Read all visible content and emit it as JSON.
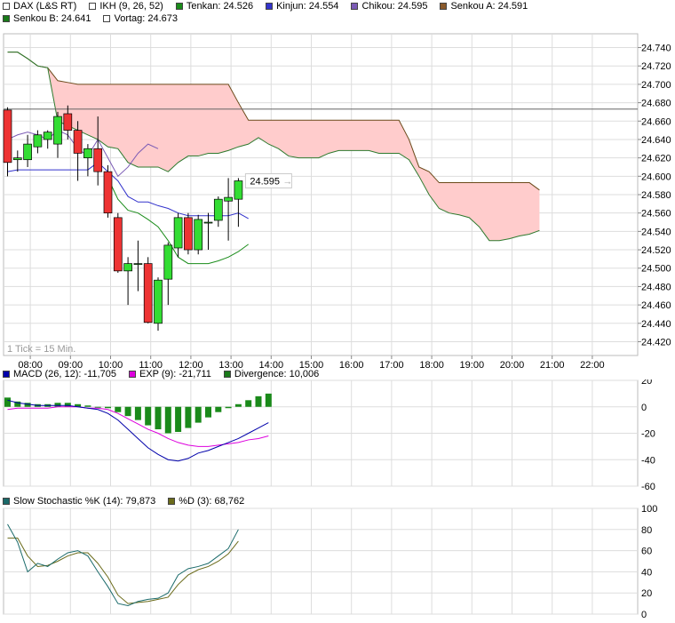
{
  "legend_row1": [
    {
      "label": "DAX (L&S RT)",
      "color": "#ffffff"
    },
    {
      "label": "IKH (9, 26, 52)",
      "color": "#ffffff"
    },
    {
      "label": "Tenkan: 24.526",
      "color": "#1a8c1a"
    },
    {
      "label": "Kinjun: 24.554",
      "color": "#3333cc"
    },
    {
      "label": "Chikou: 24.595",
      "color": "#7b5bb5"
    },
    {
      "label": "Senkou A: 24.591",
      "color": "#8a5a2b"
    }
  ],
  "legend_row2": [
    {
      "label": "Senkou B: 24.641",
      "color": "#1a7a1a"
    },
    {
      "label": "Vortag: 24.673",
      "color": "#ffffff"
    }
  ],
  "tick_note": "1 Tick = 15 Min.",
  "last_price_label": "24.595",
  "macd_legend": [
    {
      "label": "MACD (26, 12): -11,705",
      "color": "#0000aa"
    },
    {
      "label": "EXP (9): -21,711",
      "color": "#dd00dd"
    },
    {
      "label": "Divergence: 10,006",
      "color": "#1a7a1a"
    }
  ],
  "stoch_legend": [
    {
      "label": "Slow Stochastic %K (14): 79,873",
      "color": "#1a6a6a"
    },
    {
      "label": "%D (3): 68,762",
      "color": "#6b6b1a"
    }
  ],
  "colors": {
    "up": "#33dd33",
    "down": "#ee3333",
    "cloud": "#ffcccc",
    "grid": "#dddddd"
  },
  "chart_data": [
    {
      "type": "candlestick",
      "title": "DAX (L&S RT)",
      "x_ticks": [
        "08:00",
        "09:00",
        "10:00",
        "11:00",
        "12:00",
        "13:00",
        "14:00",
        "15:00",
        "16:00",
        "17:00",
        "18:00",
        "19:00",
        "20:00",
        "21:00",
        "22:00"
      ],
      "y_ticks": [
        "24.420",
        "24.440",
        "24.460",
        "24.480",
        "24.500",
        "24.520",
        "24.540",
        "24.560",
        "24.580",
        "24.600",
        "24.620",
        "24.640",
        "24.660",
        "24.680",
        "24.700",
        "24.720",
        "24.740"
      ],
      "ylim": [
        24.405,
        24.755
      ],
      "prev_close": 24.673,
      "candles": [
        {
          "t": "07:30",
          "o": 24.672,
          "h": 24.675,
          "l": 24.6,
          "c": 24.615
        },
        {
          "t": "07:45",
          "o": 24.618,
          "h": 24.628,
          "l": 24.605,
          "c": 24.62
        },
        {
          "t": "08:00",
          "o": 24.618,
          "h": 24.645,
          "l": 24.61,
          "c": 24.635
        },
        {
          "t": "08:15",
          "o": 24.632,
          "h": 24.65,
          "l": 24.625,
          "c": 24.645
        },
        {
          "t": "08:30",
          "o": 24.64,
          "h": 24.65,
          "l": 24.63,
          "c": 24.648
        },
        {
          "t": "08:45",
          "o": 24.635,
          "h": 24.67,
          "l": 24.62,
          "c": 24.665
        },
        {
          "t": "09:00",
          "o": 24.668,
          "h": 24.677,
          "l": 24.64,
          "c": 24.65
        },
        {
          "t": "09:15",
          "o": 24.65,
          "h": 24.66,
          "l": 24.595,
          "c": 24.625
        },
        {
          "t": "09:30",
          "o": 24.62,
          "h": 24.635,
          "l": 24.6,
          "c": 24.63
        },
        {
          "t": "09:45",
          "o": 24.63,
          "h": 24.665,
          "l": 24.59,
          "c": 24.605
        },
        {
          "t": "10:00",
          "o": 24.605,
          "h": 24.612,
          "l": 24.555,
          "c": 24.56
        },
        {
          "t": "10:15",
          "o": 24.555,
          "h": 24.56,
          "l": 24.495,
          "c": 24.497
        },
        {
          "t": "10:30",
          "o": 24.497,
          "h": 24.512,
          "l": 24.46,
          "c": 24.505
        },
        {
          "t": "10:45",
          "o": 24.505,
          "h": 24.53,
          "l": 24.475,
          "c": 24.505
        },
        {
          "t": "11:00",
          "o": 24.505,
          "h": 24.512,
          "l": 24.44,
          "c": 24.441
        },
        {
          "t": "11:15",
          "o": 24.44,
          "h": 24.49,
          "l": 24.432,
          "c": 24.487
        },
        {
          "t": "11:30",
          "o": 24.488,
          "h": 24.528,
          "l": 24.46,
          "c": 24.525
        },
        {
          "t": "11:45",
          "o": 24.522,
          "h": 24.56,
          "l": 24.512,
          "c": 24.555
        },
        {
          "t": "12:00",
          "o": 24.555,
          "h": 24.56,
          "l": 24.515,
          "c": 24.52
        },
        {
          "t": "12:15",
          "o": 24.52,
          "h": 24.558,
          "l": 24.515,
          "c": 24.553
        },
        {
          "t": "12:30",
          "o": 24.55,
          "h": 24.56,
          "l": 24.52,
          "c": 24.55
        },
        {
          "t": "12:45",
          "o": 24.552,
          "h": 24.578,
          "l": 24.545,
          "c": 24.575
        },
        {
          "t": "13:00",
          "o": 24.573,
          "h": 24.598,
          "l": 24.53,
          "c": 24.577
        },
        {
          "t": "13:15",
          "o": 24.575,
          "h": 24.598,
          "l": 24.545,
          "c": 24.595
        }
      ],
      "senkou_a": [
        [
          0,
          24.735
        ],
        [
          1,
          24.735
        ],
        [
          2,
          24.728
        ],
        [
          3,
          24.72
        ],
        [
          4,
          24.718
        ],
        [
          5,
          24.704
        ],
        [
          6,
          24.702
        ],
        [
          7,
          24.7
        ],
        [
          8,
          24.7
        ],
        [
          9,
          24.7
        ],
        [
          10,
          24.7
        ],
        [
          11,
          24.7
        ],
        [
          12,
          24.7
        ],
        [
          13,
          24.7
        ],
        [
          14,
          24.7
        ],
        [
          15,
          24.7
        ],
        [
          16,
          24.7
        ],
        [
          17,
          24.7
        ],
        [
          18,
          24.7
        ],
        [
          19,
          24.7
        ],
        [
          20,
          24.7
        ],
        [
          21,
          24.7
        ],
        [
          22,
          24.7
        ],
        [
          23,
          24.68
        ],
        [
          24,
          24.661
        ],
        [
          25,
          24.661
        ],
        [
          26,
          24.661
        ],
        [
          27,
          24.661
        ],
        [
          28,
          24.661
        ],
        [
          29,
          24.661
        ],
        [
          30,
          24.661
        ],
        [
          31,
          24.661
        ],
        [
          32,
          24.661
        ],
        [
          33,
          24.661
        ],
        [
          34,
          24.661
        ],
        [
          35,
          24.661
        ],
        [
          36,
          24.661
        ],
        [
          37,
          24.661
        ],
        [
          38,
          24.661
        ],
        [
          39,
          24.661
        ],
        [
          40,
          24.64
        ],
        [
          41,
          24.61
        ],
        [
          42,
          24.605
        ],
        [
          43,
          24.593
        ],
        [
          44,
          24.593
        ],
        [
          45,
          24.593
        ],
        [
          46,
          24.593
        ],
        [
          47,
          24.593
        ],
        [
          48,
          24.593
        ],
        [
          49,
          24.593
        ],
        [
          50,
          24.593
        ],
        [
          51,
          24.593
        ],
        [
          52,
          24.593
        ],
        [
          53,
          24.585
        ]
      ],
      "senkou_b": [
        [
          0,
          24.735
        ],
        [
          1,
          24.735
        ],
        [
          2,
          24.728
        ],
        [
          3,
          24.72
        ],
        [
          4,
          24.718
        ],
        [
          5,
          24.66
        ],
        [
          6,
          24.655
        ],
        [
          7,
          24.65
        ],
        [
          8,
          24.645
        ],
        [
          9,
          24.64
        ],
        [
          10,
          24.632
        ],
        [
          11,
          24.63
        ],
        [
          12,
          24.615
        ],
        [
          13,
          24.61
        ],
        [
          14,
          24.61
        ],
        [
          15,
          24.61
        ],
        [
          16,
          24.605
        ],
        [
          17,
          24.615
        ],
        [
          18,
          24.622
        ],
        [
          19,
          24.622
        ],
        [
          20,
          24.625
        ],
        [
          21,
          24.625
        ],
        [
          22,
          24.628
        ],
        [
          23,
          24.632
        ],
        [
          24,
          24.635
        ],
        [
          25,
          24.642
        ],
        [
          26,
          24.635
        ],
        [
          27,
          24.63
        ],
        [
          28,
          24.622
        ],
        [
          29,
          24.62
        ],
        [
          30,
          24.62
        ],
        [
          31,
          24.62
        ],
        [
          32,
          24.625
        ],
        [
          33,
          24.628
        ],
        [
          34,
          24.628
        ],
        [
          35,
          24.628
        ],
        [
          36,
          24.628
        ],
        [
          37,
          24.625
        ],
        [
          38,
          24.625
        ],
        [
          39,
          24.625
        ],
        [
          40,
          24.618
        ],
        [
          41,
          24.6
        ],
        [
          42,
          24.58
        ],
        [
          43,
          24.565
        ],
        [
          44,
          24.56
        ],
        [
          45,
          24.558
        ],
        [
          46,
          24.555
        ],
        [
          47,
          24.545
        ],
        [
          48,
          24.53
        ],
        [
          49,
          24.53
        ],
        [
          50,
          24.532
        ],
        [
          51,
          24.535
        ],
        [
          52,
          24.537
        ],
        [
          53,
          24.541
        ]
      ],
      "tenkan": [
        [
          10,
          24.598
        ],
        [
          11,
          24.575
        ],
        [
          12,
          24.563
        ],
        [
          13,
          24.56
        ],
        [
          14,
          24.553
        ],
        [
          15,
          24.545
        ],
        [
          16,
          24.53
        ],
        [
          17,
          24.512
        ],
        [
          18,
          24.505
        ],
        [
          19,
          24.505
        ],
        [
          20,
          24.505
        ],
        [
          21,
          24.508
        ],
        [
          22,
          24.512
        ],
        [
          23,
          24.518
        ],
        [
          24,
          24.526
        ]
      ],
      "kijun": [
        [
          0,
          24.605
        ],
        [
          1,
          24.607
        ],
        [
          2,
          24.607
        ],
        [
          3,
          24.607
        ],
        [
          4,
          24.607
        ],
        [
          5,
          24.607
        ],
        [
          6,
          24.607
        ],
        [
          7,
          24.607
        ],
        [
          8,
          24.607
        ],
        [
          9,
          24.615
        ],
        [
          10,
          24.605
        ],
        [
          11,
          24.595
        ],
        [
          12,
          24.578
        ],
        [
          13,
          24.572
        ],
        [
          14,
          24.572
        ],
        [
          15,
          24.568
        ],
        [
          16,
          24.565
        ],
        [
          17,
          24.56
        ],
        [
          18,
          24.557
        ],
        [
          19,
          24.557
        ],
        [
          20,
          24.557
        ],
        [
          21,
          24.557
        ],
        [
          22,
          24.557
        ],
        [
          23,
          24.56
        ],
        [
          24,
          24.554
        ]
      ],
      "chikou": [
        [
          0,
          24.64
        ],
        [
          1,
          24.645
        ],
        [
          2,
          24.648
        ],
        [
          3,
          24.645
        ],
        [
          4,
          24.64
        ],
        [
          5,
          24.65
        ],
        [
          6,
          24.645
        ],
        [
          7,
          24.63
        ],
        [
          8,
          24.622
        ],
        [
          9,
          24.64
        ],
        [
          10,
          24.62
        ],
        [
          11,
          24.6
        ],
        [
          12,
          24.61
        ],
        [
          13,
          24.625
        ],
        [
          14,
          24.635
        ],
        [
          15,
          24.63
        ]
      ]
    },
    {
      "type": "bar+line",
      "title": "MACD",
      "y_ticks": [
        "20",
        "0",
        "-20",
        "-40",
        "-60"
      ],
      "ylim": [
        -60,
        20
      ],
      "divergence": [
        7,
        4,
        3,
        2,
        2,
        3,
        3,
        2,
        1,
        0,
        -1,
        -4,
        -7,
        -10,
        -14,
        -17,
        -20,
        -19,
        -16,
        -12,
        -8,
        -4,
        -1,
        2,
        5,
        8,
        10
      ],
      "macd": [
        5,
        3,
        2,
        1,
        1,
        1,
        1,
        0,
        -1,
        -2,
        -5,
        -10,
        -17,
        -24,
        -31,
        -36,
        -40,
        -41,
        -39,
        -35,
        -33,
        -30,
        -27,
        -24,
        -20,
        -16,
        -12
      ],
      "exp": [
        -2,
        -1,
        -1,
        -1,
        -1,
        0,
        0,
        0,
        -1,
        -1,
        -2,
        -5,
        -9,
        -13,
        -17,
        -20,
        -24,
        -27,
        -29,
        -30,
        -30,
        -29,
        -28,
        -27,
        -25,
        -24,
        -22
      ]
    },
    {
      "type": "line",
      "title": "Slow Stochastic",
      "y_ticks": [
        "100",
        "80",
        "60",
        "40",
        "20",
        "0"
      ],
      "ylim": [
        0,
        100
      ],
      "k": [
        85,
        68,
        40,
        48,
        45,
        52,
        58,
        60,
        55,
        40,
        26,
        10,
        8,
        12,
        14,
        15,
        20,
        37,
        43,
        45,
        48,
        55,
        62,
        80
      ],
      "d": [
        72,
        72,
        55,
        45,
        46,
        50,
        55,
        58,
        58,
        48,
        35,
        18,
        10,
        11,
        12,
        14,
        16,
        28,
        37,
        42,
        45,
        50,
        57,
        69
      ]
    }
  ]
}
